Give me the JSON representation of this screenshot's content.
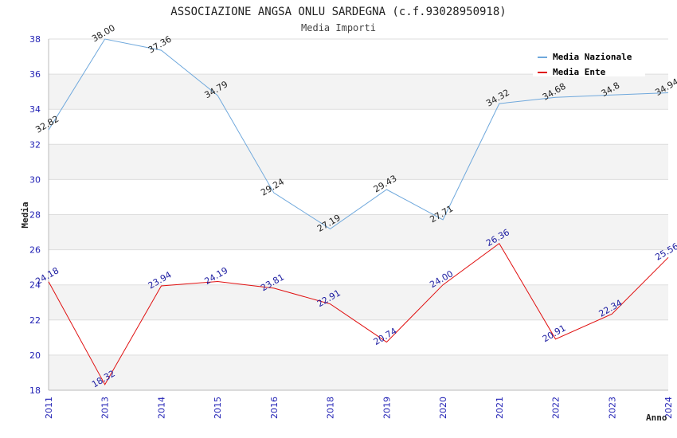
{
  "chart_data": {
    "type": "line",
    "title": "ASSOCIAZIONE ANGSA ONLU SARDEGNA (c.f.93028950918)",
    "subtitle": "Media Importi",
    "xlabel": "Anno",
    "ylabel": "Media",
    "ylim": [
      18,
      38
    ],
    "yticks": [
      18,
      20,
      22,
      24,
      26,
      28,
      30,
      32,
      34,
      36,
      38
    ],
    "categories": [
      "2011",
      "2013",
      "2014",
      "2015",
      "2016",
      "2018",
      "2019",
      "2020",
      "2021",
      "2022",
      "2023",
      "2024"
    ],
    "grid": true,
    "legend_position": "top-right",
    "series": [
      {
        "name": "Media Nazionale",
        "color": "#6fa8dc",
        "values": [
          32.82,
          38.0,
          37.36,
          34.79,
          29.24,
          27.19,
          29.43,
          27.71,
          34.32,
          34.68,
          34.81,
          34.94
        ],
        "labels": [
          "32.82",
          "38.00",
          "37.36",
          "34.79",
          "29.24",
          "27.19",
          "29.43",
          "27.71",
          "34.32",
          "34.68",
          "34.8",
          "34.94"
        ]
      },
      {
        "name": "Media Ente",
        "color": "#e01010",
        "values": [
          24.18,
          18.32,
          23.94,
          24.19,
          23.81,
          22.91,
          20.74,
          24.0,
          26.36,
          20.91,
          22.34,
          25.56
        ],
        "labels": [
          "24.18",
          "18.32",
          "23.94",
          "24.19",
          "23.81",
          "22.91",
          "20.74",
          "24.00",
          "26.36",
          "20.91",
          "22.34",
          "25.56"
        ]
      }
    ]
  }
}
